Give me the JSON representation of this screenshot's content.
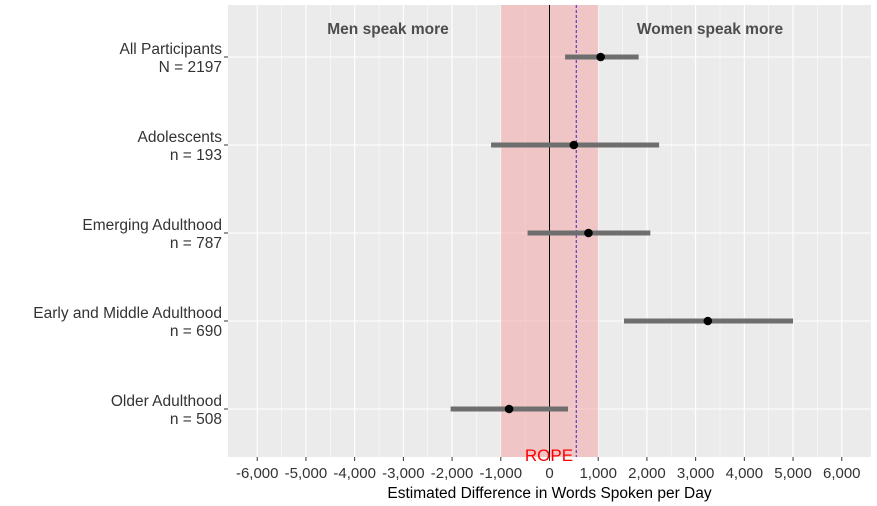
{
  "chart_data": {
    "type": "forest",
    "xlabel": "Estimated Difference in Words Spoken per Day",
    "xlim": [
      -6600,
      6600
    ],
    "x_ticks": [
      -6000,
      -5000,
      -4000,
      -3000,
      -2000,
      -1000,
      0,
      1000,
      2000,
      3000,
      4000,
      5000,
      6000
    ],
    "x_tick_labels": [
      "-6,000",
      "-5,000",
      "-4,000",
      "-3,000",
      "-2,000",
      "-1,000",
      "0",
      "1,000",
      "2,000",
      "3,000",
      "4,000",
      "5,000",
      "6,000"
    ],
    "grid": true,
    "rope": {
      "label": "ROPE",
      "low": -1000,
      "high": 1000,
      "color": "#f4a5a5",
      "label_color": "#ff0000"
    },
    "reference_line": 0,
    "overall_estimate_line": 550,
    "region_labels": {
      "left": "Men speak more",
      "right": "Women speak more"
    },
    "rows": [
      {
        "label": "All Participants",
        "n_label": "N = 2197",
        "estimate": 1050,
        "ci_low": 320,
        "ci_high": 1830
      },
      {
        "label": "Adolescents",
        "n_label": "n = 193",
        "estimate": 500,
        "ci_low": -1200,
        "ci_high": 2250
      },
      {
        "label": "Emerging Adulthood",
        "n_label": "n = 787",
        "estimate": 800,
        "ci_low": -450,
        "ci_high": 2070
      },
      {
        "label": "Early and Middle Adulthood",
        "n_label": "n = 690",
        "estimate": 3250,
        "ci_low": 1530,
        "ci_high": 5000
      },
      {
        "label": "Older Adulthood",
        "n_label": "n = 508",
        "estimate": -830,
        "ci_low": -2030,
        "ci_high": 380
      }
    ],
    "colors": {
      "panel": "#ebebeb",
      "grid": "#ffffff",
      "interval": "#6e6e6e",
      "point": "#000000",
      "estimate_line": "#5a3fc0"
    }
  }
}
